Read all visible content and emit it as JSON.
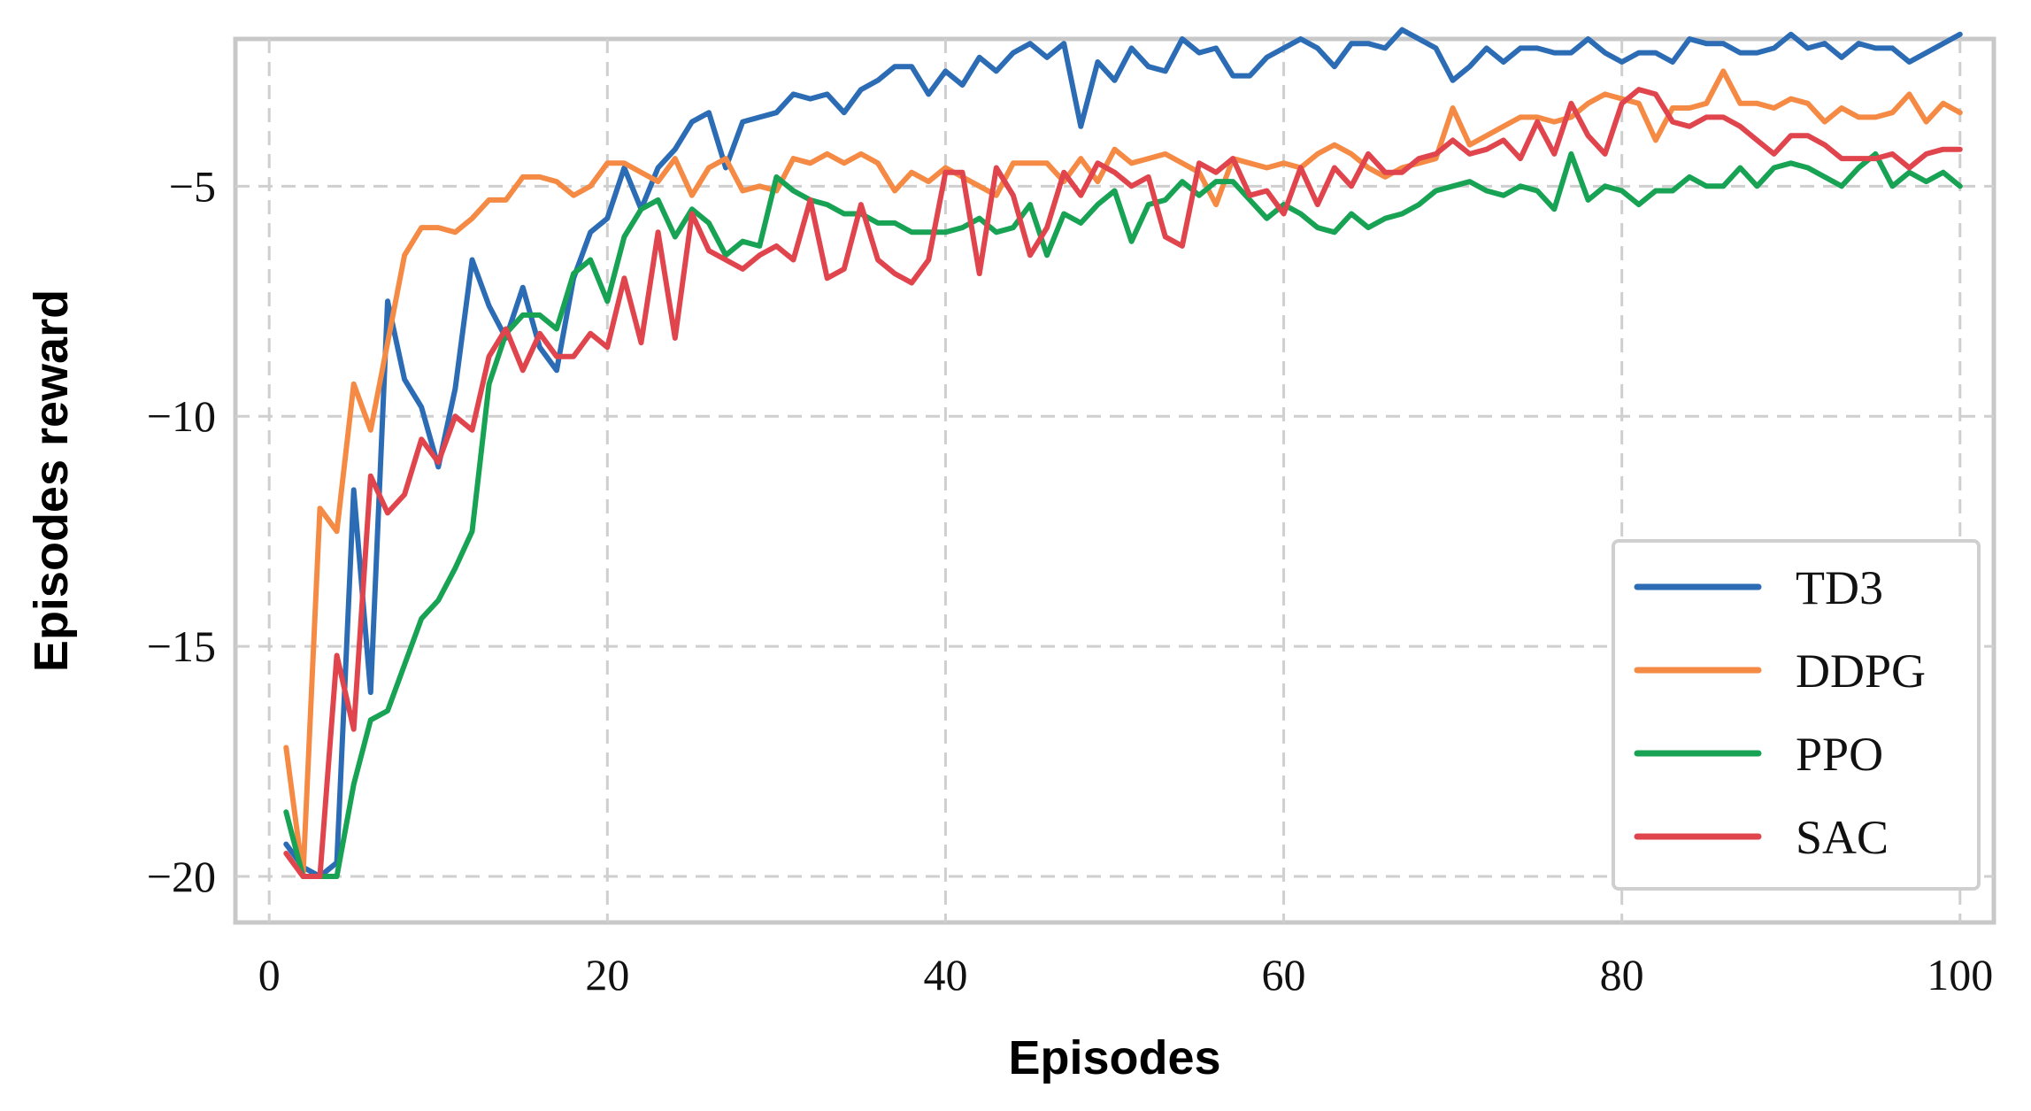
{
  "chart_data": {
    "type": "line",
    "xlabel": "Episodes",
    "ylabel": "Episodes reward",
    "xlim": [
      -2,
      102
    ],
    "ylim": [
      -21,
      -1.8
    ],
    "xticks": [
      0,
      20,
      40,
      60,
      80,
      100
    ],
    "yticks": [
      -20,
      -15,
      -10,
      -5
    ],
    "xtick_labels": [
      "0",
      "20",
      "40",
      "60",
      "80",
      "100"
    ],
    "ytick_labels": [
      "−20",
      "−15",
      "−10",
      "−5"
    ],
    "grid": true,
    "legend_position": "lower-right",
    "colors": {
      "TD3": "#2b6cb5",
      "DDPG": "#f58a45",
      "PPO": "#17a254",
      "SAC": "#e0454d"
    },
    "x": [
      1,
      2,
      3,
      4,
      5,
      6,
      7,
      8,
      9,
      10,
      11,
      12,
      13,
      14,
      15,
      16,
      17,
      18,
      19,
      20,
      21,
      22,
      23,
      24,
      25,
      26,
      27,
      28,
      29,
      30,
      31,
      32,
      33,
      34,
      35,
      36,
      37,
      38,
      39,
      40,
      41,
      42,
      43,
      44,
      45,
      46,
      47,
      48,
      49,
      50,
      51,
      52,
      53,
      54,
      55,
      56,
      57,
      58,
      59,
      60,
      61,
      62,
      63,
      64,
      65,
      66,
      67,
      68,
      69,
      70,
      71,
      72,
      73,
      74,
      75,
      76,
      77,
      78,
      79,
      80,
      81,
      82,
      83,
      84,
      85,
      86,
      87,
      88,
      89,
      90,
      91,
      92,
      93,
      94,
      95,
      96,
      97,
      98,
      99,
      100
    ],
    "series": [
      {
        "name": "TD3",
        "values": [
          -19.3,
          -19.8,
          -20.0,
          -19.7,
          -11.6,
          -16.0,
          -7.5,
          -9.2,
          -9.8,
          -11.1,
          -9.4,
          -6.6,
          -7.6,
          -8.3,
          -7.2,
          -8.5,
          -9.0,
          -7.0,
          -6.0,
          -5.7,
          -4.6,
          -5.5,
          -4.6,
          -4.2,
          -3.6,
          -3.4,
          -4.6,
          -3.6,
          -3.5,
          -3.4,
          -3.0,
          -3.1,
          -3.0,
          -3.4,
          -2.9,
          -2.7,
          -2.4,
          -2.4,
          -3.0,
          -2.5,
          -2.8,
          -2.2,
          -2.5,
          -2.1,
          -1.9,
          -2.2,
          -1.9,
          -3.7,
          -2.3,
          -2.7,
          -2.0,
          -2.4,
          -2.5,
          -1.8,
          -2.1,
          -2.0,
          -2.6,
          -2.6,
          -2.2,
          -2.0,
          -1.8,
          -2.0,
          -2.4,
          -1.9,
          -1.9,
          -2.0,
          -1.6,
          -1.8,
          -2.0,
          -2.7,
          -2.4,
          -2.0,
          -2.3,
          -2.0,
          -2.0,
          -2.1,
          -2.1,
          -1.8,
          -2.1,
          -2.3,
          -2.1,
          -2.1,
          -2.3,
          -1.8,
          -1.9,
          -1.9,
          -2.1,
          -2.1,
          -2.0,
          -1.7,
          -2.0,
          -1.9,
          -2.2,
          -1.9,
          -2.0,
          -2.0,
          -2.3,
          -2.1,
          -1.9,
          -1.7
        ]
      },
      {
        "name": "DDPG",
        "values": [
          -17.2,
          -20.0,
          -12.0,
          -12.5,
          -9.3,
          -10.3,
          -8.4,
          -6.5,
          -5.9,
          -5.9,
          -6.0,
          -5.7,
          -5.3,
          -5.3,
          -4.8,
          -4.8,
          -4.9,
          -5.2,
          -5.0,
          -4.5,
          -4.5,
          -4.7,
          -4.9,
          -4.4,
          -5.2,
          -4.6,
          -4.4,
          -5.1,
          -5.0,
          -5.1,
          -4.4,
          -4.5,
          -4.3,
          -4.5,
          -4.3,
          -4.5,
          -5.1,
          -4.7,
          -4.9,
          -4.6,
          -4.8,
          -5.0,
          -5.2,
          -4.5,
          -4.5,
          -4.5,
          -4.9,
          -4.4,
          -4.9,
          -4.2,
          -4.5,
          -4.4,
          -4.3,
          -4.5,
          -4.7,
          -5.4,
          -4.4,
          -4.5,
          -4.6,
          -4.5,
          -4.6,
          -4.3,
          -4.1,
          -4.3,
          -4.6,
          -4.8,
          -4.6,
          -4.5,
          -4.4,
          -3.3,
          -4.1,
          -3.9,
          -3.7,
          -3.5,
          -3.5,
          -3.6,
          -3.5,
          -3.2,
          -3.0,
          -3.1,
          -3.2,
          -4.0,
          -3.3,
          -3.3,
          -3.2,
          -2.5,
          -3.2,
          -3.2,
          -3.3,
          -3.1,
          -3.2,
          -3.6,
          -3.3,
          -3.5,
          -3.5,
          -3.4,
          -3.0,
          -3.6,
          -3.2,
          -3.4
        ]
      },
      {
        "name": "PPO",
        "values": [
          -18.6,
          -20.0,
          -20.0,
          -20.0,
          -18.0,
          -16.6,
          -16.4,
          -15.4,
          -14.4,
          -14.0,
          -13.3,
          -12.5,
          -9.3,
          -8.2,
          -7.8,
          -7.8,
          -8.1,
          -6.9,
          -6.6,
          -7.5,
          -6.1,
          -5.5,
          -5.3,
          -6.1,
          -5.5,
          -5.8,
          -6.5,
          -6.2,
          -6.3,
          -4.8,
          -5.1,
          -5.3,
          -5.4,
          -5.6,
          -5.6,
          -5.8,
          -5.8,
          -6.0,
          -6.0,
          -6.0,
          -5.9,
          -5.7,
          -6.0,
          -5.9,
          -5.4,
          -6.5,
          -5.6,
          -5.8,
          -5.4,
          -5.1,
          -6.2,
          -5.4,
          -5.3,
          -4.9,
          -5.2,
          -4.9,
          -4.9,
          -5.3,
          -5.7,
          -5.4,
          -5.6,
          -5.9,
          -6.0,
          -5.6,
          -5.9,
          -5.7,
          -5.6,
          -5.4,
          -5.1,
          -5.0,
          -4.9,
          -5.1,
          -5.2,
          -5.0,
          -5.1,
          -5.5,
          -4.3,
          -5.3,
          -5.0,
          -5.1,
          -5.4,
          -5.1,
          -5.1,
          -4.8,
          -5.0,
          -5.0,
          -4.6,
          -5.0,
          -4.6,
          -4.5,
          -4.6,
          -4.8,
          -5.0,
          -4.6,
          -4.3,
          -5.0,
          -4.7,
          -4.9,
          -4.7,
          -5.0
        ]
      },
      {
        "name": "SAC",
        "values": [
          -19.5,
          -20.0,
          -20.0,
          -15.2,
          -16.8,
          -11.3,
          -12.1,
          -11.7,
          -10.5,
          -11.0,
          -10.0,
          -10.3,
          -8.7,
          -8.1,
          -9.0,
          -8.2,
          -8.7,
          -8.7,
          -8.2,
          -8.5,
          -7.0,
          -8.4,
          -6.0,
          -8.3,
          -5.6,
          -6.4,
          -6.6,
          -6.8,
          -6.5,
          -6.3,
          -6.6,
          -5.3,
          -7.0,
          -6.8,
          -5.4,
          -6.6,
          -6.9,
          -7.1,
          -6.6,
          -4.7,
          -4.7,
          -6.9,
          -4.6,
          -5.2,
          -6.5,
          -5.9,
          -4.7,
          -5.2,
          -4.5,
          -4.7,
          -5.0,
          -4.8,
          -6.1,
          -6.3,
          -4.5,
          -4.7,
          -4.4,
          -5.2,
          -5.1,
          -5.6,
          -4.6,
          -5.4,
          -4.6,
          -5.0,
          -4.3,
          -4.7,
          -4.7,
          -4.4,
          -4.3,
          -4.0,
          -4.3,
          -4.2,
          -4.0,
          -4.4,
          -3.6,
          -4.3,
          -3.2,
          -3.9,
          -4.3,
          -3.2,
          -2.9,
          -3.0,
          -3.6,
          -3.7,
          -3.5,
          -3.5,
          -3.7,
          -4.0,
          -4.3,
          -3.9,
          -3.9,
          -4.1,
          -4.4,
          -4.4,
          -4.4,
          -4.3,
          -4.6,
          -4.3,
          -4.2,
          -4.2
        ]
      }
    ]
  }
}
